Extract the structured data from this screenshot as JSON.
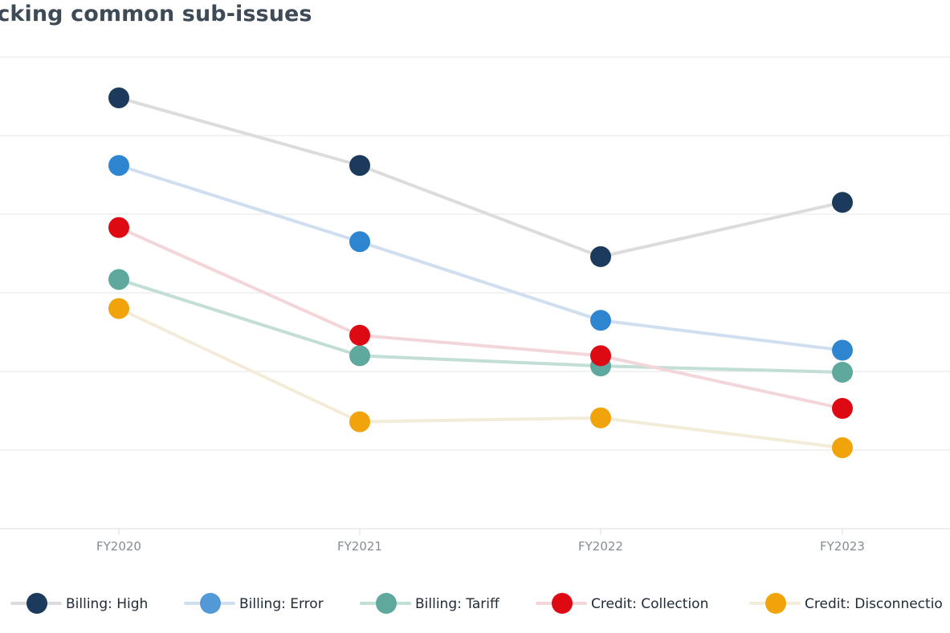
{
  "chart_data": {
    "type": "line",
    "title": "Tracking common sub-issues",
    "visible_title": "acking common sub-issues",
    "categories": [
      "FY2020",
      "FY2021",
      "FY2022",
      "FY2023"
    ],
    "ylim": [
      0,
      6
    ],
    "grid": true,
    "legend_position": "bottom",
    "series": [
      {
        "name": "Billing: High",
        "values": [
          5.48,
          4.62,
          3.46,
          4.15
        ],
        "marker_color": "#1b3a5c",
        "line_color": "#dcdcdc",
        "legend_marker_color": "#1b3a5c"
      },
      {
        "name": "Billing: Error",
        "values": [
          4.62,
          3.65,
          2.65,
          2.27
        ],
        "marker_color": "#2f86d0",
        "line_color": "#cfdff0",
        "legend_marker_color": "#5399d8"
      },
      {
        "name": "Billing: Tariff",
        "values": [
          3.17,
          2.2,
          2.07,
          1.99
        ],
        "marker_color": "#5fa89e",
        "line_color": "#c3ddd7",
        "legend_marker_color": "#5fa89e"
      },
      {
        "name": "Credit: Collection",
        "values": [
          3.83,
          2.46,
          2.2,
          1.53
        ],
        "marker_color": "#dd0a14",
        "line_color": "#f2d6da",
        "legend_marker_color": "#dd0a14"
      },
      {
        "name": "Credit: Disconnection",
        "visible_name": "Credit: Disconnectio",
        "values": [
          2.8,
          1.36,
          1.41,
          1.03
        ],
        "marker_color": "#f0a30a",
        "line_color": "#f2ecd8",
        "legend_marker_color": "#f0a30a"
      }
    ]
  }
}
